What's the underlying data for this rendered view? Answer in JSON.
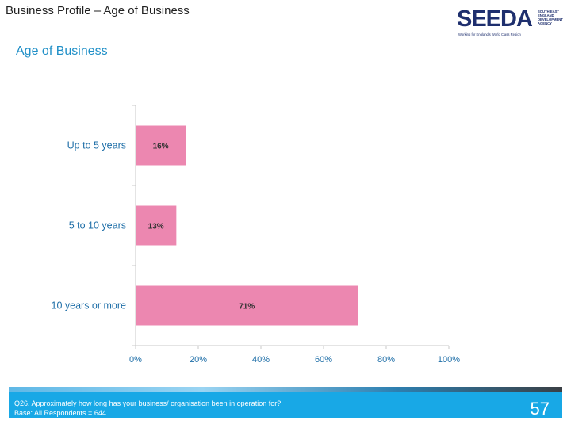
{
  "header": {
    "slide_title": "Business Profile – Age of Business",
    "section_title": "Age of Business"
  },
  "logo": {
    "wordmark": "SEEDA",
    "subtext": "SOUTH EAST\nENGLAND\nDEVELOPMENT\nAGENCY",
    "tagline": "Working for England's World Class Region"
  },
  "chart_data": {
    "type": "bar",
    "orientation": "horizontal",
    "categories": [
      "Up to 5 years",
      "5 to 10 years",
      "10 years or more"
    ],
    "values": [
      16,
      13,
      71
    ],
    "data_labels": [
      "16%",
      "13%",
      "71%"
    ],
    "xlim": [
      0,
      100
    ],
    "x_ticks": [
      "0%",
      "20%",
      "40%",
      "60%",
      "80%",
      "100%"
    ],
    "bar_color": "#ec87b0",
    "grid": false
  },
  "footer": {
    "question": "Q26. Approximately how long has your business/ organisation been in operation for?",
    "base": "Base: All Respondents = 644",
    "page_number": "57"
  },
  "colors": {
    "accent": "#1f8fc7",
    "footer_bg": "#18a8e6",
    "logo": "#1e2f6e"
  }
}
